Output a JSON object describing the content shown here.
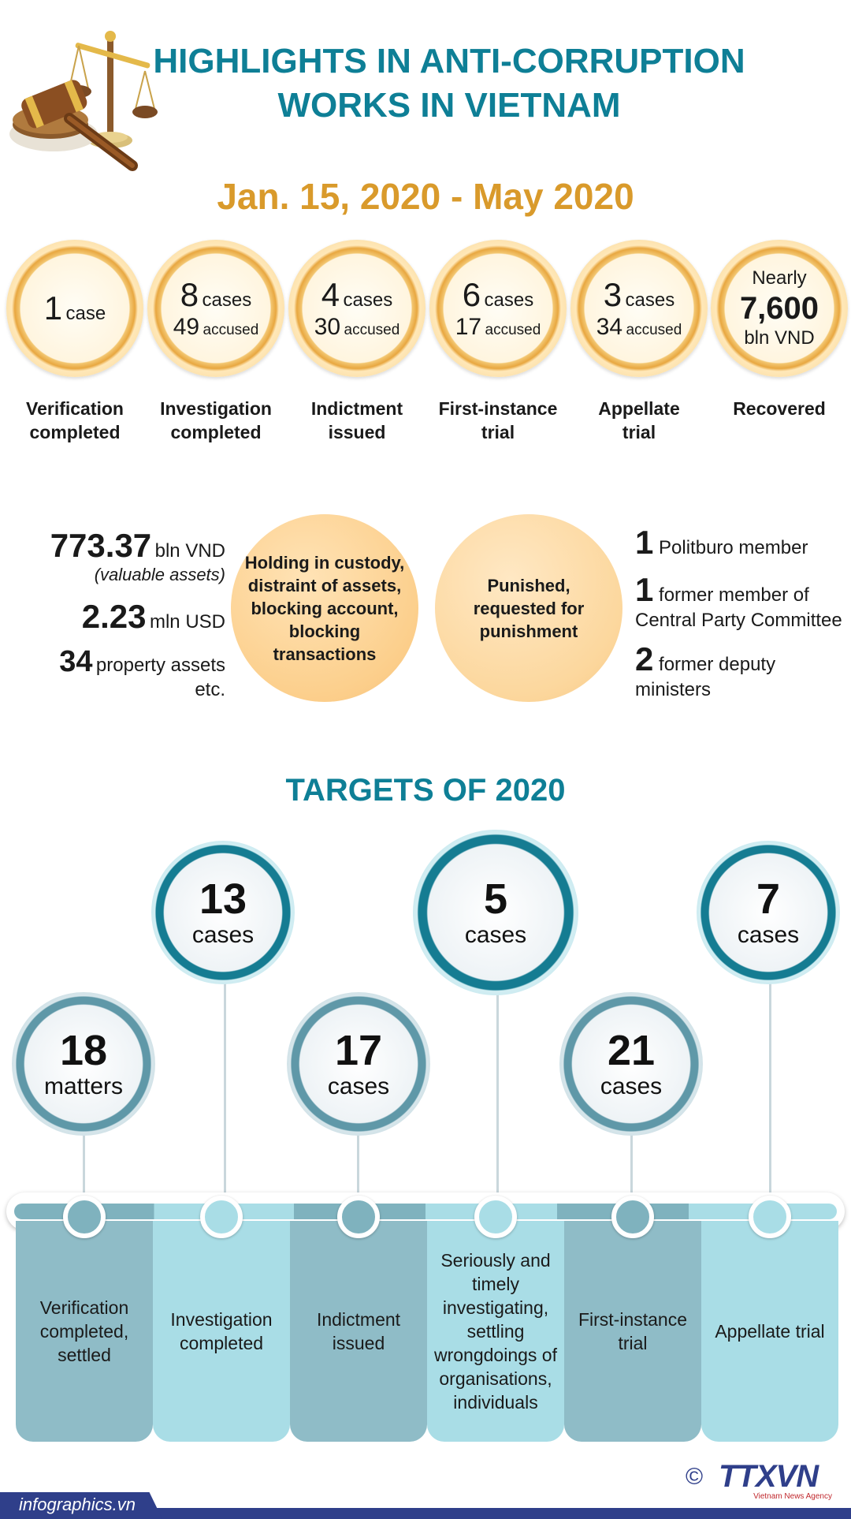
{
  "header": {
    "title_line1": "HIGHLIGHTS IN ANTI-CORRUPTION",
    "title_line2": "WORKS IN VIETNAM",
    "period": "Jan. 15, 2020 - May 2020"
  },
  "stages": [
    {
      "num": "1",
      "unit": "case",
      "accused_num": "",
      "accused_unit": "",
      "label_line1": "Verification",
      "label_line2": "completed"
    },
    {
      "num": "8",
      "unit": "cases",
      "accused_num": "49",
      "accused_unit": "accused",
      "label_line1": "Investigation",
      "label_line2": "completed"
    },
    {
      "num": "4",
      "unit": "cases",
      "accused_num": "30",
      "accused_unit": "accused",
      "label_line1": "Indictment",
      "label_line2": "issued"
    },
    {
      "num": "6",
      "unit": "cases",
      "accused_num": "17",
      "accused_unit": "accused",
      "label_line1": "First-instance",
      "label_line2": "trial"
    },
    {
      "num": "3",
      "unit": "cases",
      "accused_num": "34",
      "accused_unit": "accused",
      "label_line1": "Appellate",
      "label_line2": "trial"
    }
  ],
  "recovered": {
    "prefix": "Nearly",
    "num": "7,600",
    "unit": "bln VND",
    "label": "Recovered"
  },
  "custody": {
    "orb_text": "Holding in custody, distraint of assets, blocking account, blocking transactions",
    "items": [
      {
        "num": "773.37",
        "text": "bln VND",
        "note": "(valuable assets)"
      },
      {
        "num": "2.23",
        "text": "mln USD"
      },
      {
        "num": "34",
        "text": "property assets",
        "note": "etc."
      }
    ]
  },
  "punished": {
    "orb_text": "Punished, requested for punishment",
    "items": [
      {
        "num": "1",
        "text_line1": "Politburo member",
        "text_line2": ""
      },
      {
        "num": "1",
        "text_line1": "former member of",
        "text_line2": "Central Party Committee"
      },
      {
        "num": "2",
        "text_line1": "former deputy",
        "text_line2": "ministers"
      }
    ]
  },
  "targets": {
    "title": "TARGETS OF 2020",
    "items": [
      {
        "num": "18",
        "unit": "matters",
        "label": "Verification completed, settled"
      },
      {
        "num": "13",
        "unit": "cases",
        "label": "Investigation completed"
      },
      {
        "num": "17",
        "unit": "cases",
        "label": "Indictment issued"
      },
      {
        "num": "5",
        "unit": "cases",
        "label": "Seriously and timely investigating, settling wrongdoings of organisations, individuals"
      },
      {
        "num": "21",
        "unit": "cases",
        "label": "First-instance trial"
      },
      {
        "num": "7",
        "unit": "cases",
        "label": "Appellate trial"
      }
    ]
  },
  "footer": {
    "site": "infographics.vn",
    "copyright": "©",
    "agency_logo": "TTXVN",
    "agency_sub": "Vietnam News Agency"
  },
  "colors": {
    "teal": "#0e7f96",
    "gold": "#d99a2b",
    "col_dark": "#8fbcc7",
    "col_light": "#a9dde6",
    "footer_bar": "#2f3f8a"
  }
}
